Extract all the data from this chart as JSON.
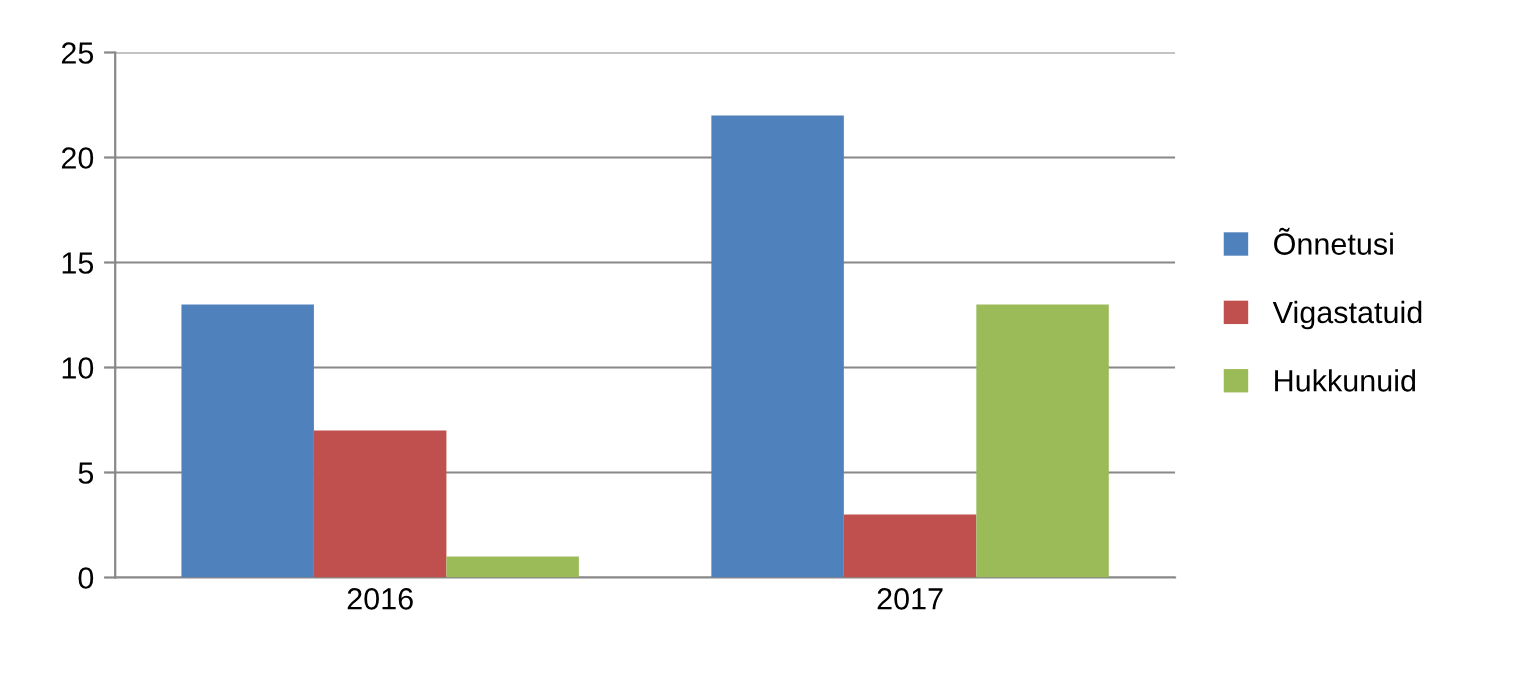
{
  "chart_data": {
    "type": "bar",
    "categories": [
      "2016",
      "2017"
    ],
    "series": [
      {
        "name": "Õnnetusi",
        "color": "#4f81bd",
        "values": [
          13,
          22
        ]
      },
      {
        "name": "Vigastatuid",
        "color": "#c0504d",
        "values": [
          7,
          3
        ]
      },
      {
        "name": "Hukkunuid",
        "color": "#9bbb59",
        "values": [
          1,
          13
        ]
      }
    ],
    "ylim": [
      0,
      25
    ],
    "yticks": [
      0,
      5,
      10,
      15,
      20,
      25
    ],
    "grid": "y",
    "legend": "right"
  }
}
